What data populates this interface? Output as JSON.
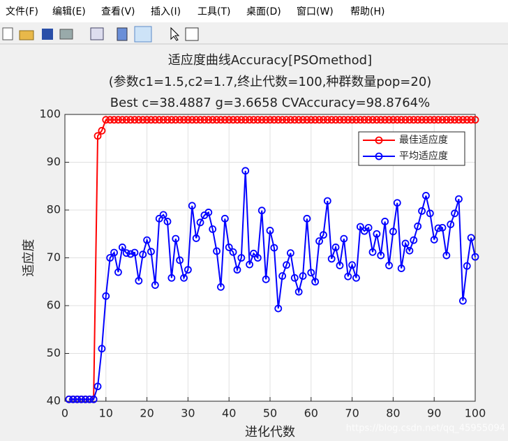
{
  "menu": [
    "文件(F)",
    "编辑(E)",
    "查看(V)",
    "插入(I)",
    "工具(T)",
    "桌面(D)",
    "窗口(W)",
    "帮助(H)"
  ],
  "watermark": "https://blog.csdn.net/qq_45955094",
  "chart_data": {
    "type": "line",
    "title": "适应度曲线Accuracy[PSOmethod]",
    "subtitle": "(参数c1=1.5,c2=1.7,终止代数=100,种群数量pop=20)",
    "subtitle2": "Best c=38.4887 g=3.6658 CVAccuracy=98.8764%",
    "xlabel": "进化代数",
    "ylabel": "适应度",
    "x": [
      1,
      2,
      3,
      4,
      5,
      6,
      7,
      8,
      9,
      10,
      11,
      12,
      13,
      14,
      15,
      16,
      17,
      18,
      19,
      20,
      21,
      22,
      23,
      24,
      25,
      26,
      27,
      28,
      29,
      30,
      31,
      32,
      33,
      34,
      35,
      36,
      37,
      38,
      39,
      40,
      41,
      42,
      43,
      44,
      45,
      46,
      47,
      48,
      49,
      50,
      51,
      52,
      53,
      54,
      55,
      56,
      57,
      58,
      59,
      60,
      61,
      62,
      63,
      64,
      65,
      66,
      67,
      68,
      69,
      70,
      71,
      72,
      73,
      74,
      75,
      76,
      77,
      78,
      79,
      80,
      81,
      82,
      83,
      84,
      85,
      86,
      87,
      88,
      89,
      90,
      91,
      92,
      93,
      94,
      95,
      96,
      97,
      98,
      99,
      100
    ],
    "series": [
      {
        "name": "最佳适应度",
        "color": "#ff0000",
        "values": [
          40.4,
          40.4,
          40.4,
          40.4,
          40.4,
          40.4,
          40.4,
          95.5,
          96.6,
          98.88,
          98.88,
          98.88,
          98.88,
          98.88,
          98.88,
          98.88,
          98.88,
          98.88,
          98.88,
          98.88,
          98.88,
          98.88,
          98.88,
          98.88,
          98.88,
          98.88,
          98.88,
          98.88,
          98.88,
          98.88,
          98.88,
          98.88,
          98.88,
          98.88,
          98.88,
          98.88,
          98.88,
          98.88,
          98.88,
          98.88,
          98.88,
          98.88,
          98.88,
          98.88,
          98.88,
          98.88,
          98.88,
          98.88,
          98.88,
          98.88,
          98.88,
          98.88,
          98.88,
          98.88,
          98.88,
          98.88,
          98.88,
          98.88,
          98.88,
          98.88,
          98.88,
          98.88,
          98.88,
          98.88,
          98.88,
          98.88,
          98.88,
          98.88,
          98.88,
          98.88,
          98.88,
          98.88,
          98.88,
          98.88,
          98.88,
          98.88,
          98.88,
          98.88,
          98.88,
          98.88,
          98.88,
          98.88,
          98.88,
          98.88,
          98.88,
          98.88,
          98.88,
          98.88,
          98.88,
          98.88,
          98.88,
          98.88,
          98.88,
          98.88,
          98.88,
          98.88,
          98.88,
          98.88,
          98.88,
          98.88
        ]
      },
      {
        "name": "平均适应度",
        "color": "#0000ff",
        "values": [
          40.4,
          40.4,
          40.4,
          40.4,
          40.4,
          40.4,
          40.4,
          43.1,
          51,
          62,
          70,
          71.1,
          67,
          72.2,
          71,
          70.8,
          71.1,
          65.2,
          70.7,
          73.7,
          71.3,
          64.3,
          78.2,
          79,
          77.6,
          65.8,
          74,
          69.5,
          65.8,
          67.5,
          80.9,
          74.1,
          77.4,
          78.9,
          79.5,
          76,
          71.4,
          63.9,
          78.2,
          72.2,
          71.2,
          67.5,
          70,
          88.2,
          68.6,
          70.9,
          70,
          79.9,
          65.5,
          75.7,
          72.1,
          59.4,
          66.2,
          68.5,
          71,
          65.8,
          62.9,
          66.2,
          78.2,
          66.9,
          65,
          73.5,
          74.8,
          81.9,
          69.8,
          72.2,
          68.4,
          74,
          66.1,
          68.5,
          65.8,
          76.5,
          75.6,
          76.3,
          71.2,
          75,
          70.5,
          77.6,
          68.4,
          75.5,
          81.5,
          67.8,
          73,
          71.5,
          73.7,
          76.6,
          79.8,
          83,
          79.3,
          73.8,
          76.2,
          76.3,
          70.5,
          77,
          79.3,
          82.3,
          61,
          68.3,
          74.2,
          70.2
        ]
      }
    ],
    "xlim": [
      0,
      100
    ],
    "xticks": [
      0,
      10,
      20,
      30,
      40,
      50,
      60,
      70,
      80,
      90,
      100
    ],
    "ylim": [
      40,
      100
    ],
    "yticks": [
      40,
      50,
      60,
      70,
      80,
      90,
      100
    ],
    "grid": true,
    "legend": "upper right"
  }
}
